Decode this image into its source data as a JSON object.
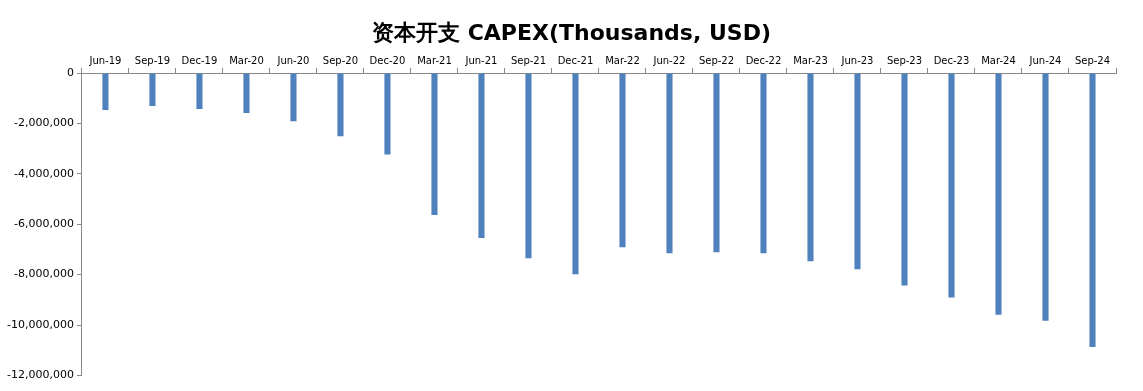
{
  "chart_data": {
    "type": "bar",
    "title": "资本开支 CAPEX(Thousands, USD)",
    "categories": [
      "Jun-19",
      "Sep-19",
      "Dec-19",
      "Mar-20",
      "Jun-20",
      "Sep-20",
      "Dec-20",
      "Mar-21",
      "Jun-21",
      "Sep-21",
      "Dec-21",
      "Mar-22",
      "Jun-22",
      "Sep-22",
      "Dec-22",
      "Mar-23",
      "Jun-23",
      "Sep-23",
      "Dec-23",
      "Mar-24",
      "Jun-24",
      "Sep-24"
    ],
    "values": [
      -1470000,
      -1310000,
      -1430000,
      -1590000,
      -1910000,
      -2510000,
      -3230000,
      -5630000,
      -6550000,
      -7350000,
      -7990000,
      -6910000,
      -7150000,
      -7110000,
      -7150000,
      -7470000,
      -7790000,
      -8430000,
      -8910000,
      -9590000,
      -9830000,
      -10870000
    ],
    "color": "#4f81bd",
    "ylim": [
      -12000000,
      0
    ],
    "yticks": [
      {
        "value": -12000000,
        "label": "-12,000,000"
      },
      {
        "value": -10000000,
        "label": "-10,000,000"
      },
      {
        "value": -8000000,
        "label": "-8,000,000"
      },
      {
        "value": -6000000,
        "label": "-6,000,000"
      },
      {
        "value": -4000000,
        "label": "-4,000,000"
      },
      {
        "value": -2000000,
        "label": "-2,000,000"
      },
      0
    ],
    "grid": false,
    "legend": false
  }
}
